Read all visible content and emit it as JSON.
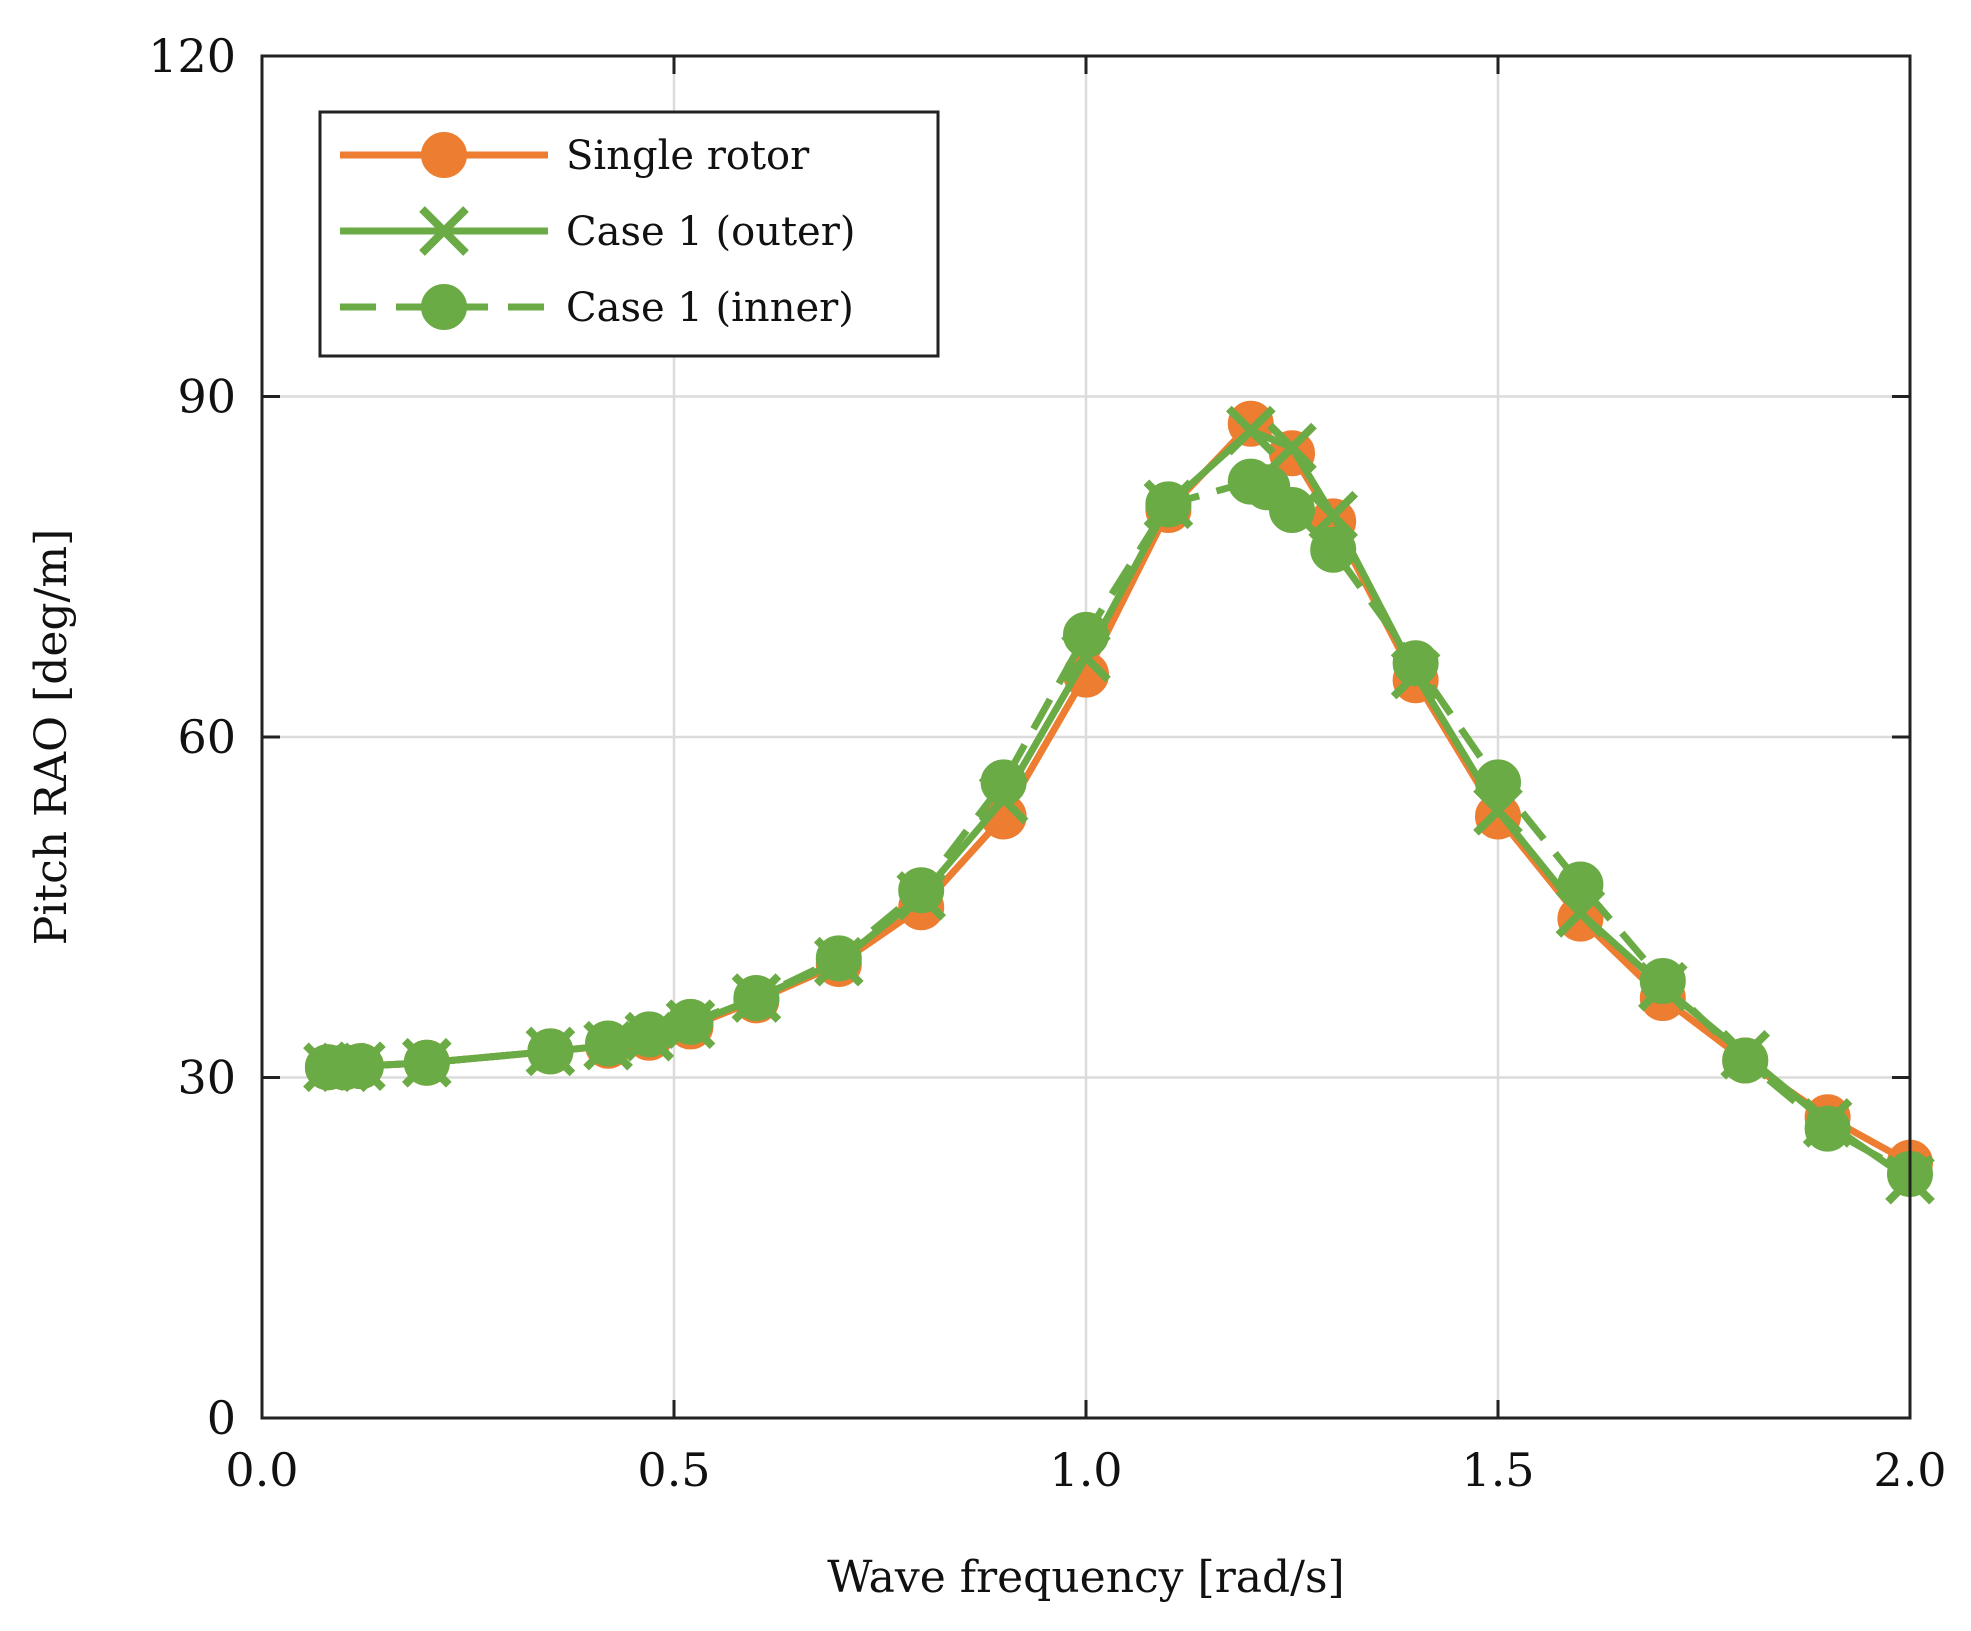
{
  "chart_data": {
    "type": "line",
    "title": "",
    "xlabel": "Wave frequency [rad/s]",
    "ylabel": "Pitch RAO [deg/m]",
    "xlim": [
      0.0,
      2.0
    ],
    "ylim": [
      0,
      120
    ],
    "xticks": [
      0.0,
      0.5,
      1.0,
      1.5,
      2.0
    ],
    "xtick_labels": [
      "0.0",
      "0.5",
      "1.0",
      "1.5",
      "2.0"
    ],
    "yticks": [
      0,
      30,
      60,
      90,
      120
    ],
    "ytick_labels": [
      "0",
      "30",
      "60",
      "90",
      "120"
    ],
    "grid": true,
    "legend_position": "top-left",
    "series": [
      {
        "name": "Single rotor",
        "color": "#ED7D31",
        "marker": "circle",
        "line_style": "solid",
        "x": [
          0.08,
          0.1,
          0.12,
          0.2,
          0.35,
          0.42,
          0.47,
          0.52,
          0.6,
          0.7,
          0.8,
          0.9,
          1.0,
          1.1,
          1.2,
          1.25,
          1.3,
          1.4,
          1.5,
          1.6,
          1.7,
          1.8,
          1.9,
          2.0
        ],
        "y": [
          30.9,
          30.9,
          31.0,
          31.3,
          32.3,
          32.8,
          33.5,
          34.5,
          36.8,
          40.0,
          45.0,
          53.0,
          65.5,
          80.0,
          87.6,
          85.0,
          79.0,
          65.0,
          53.0,
          44.0,
          37.0,
          31.5,
          26.5,
          22.5
        ]
      },
      {
        "name": "Case 1 (outer)",
        "color": "#6AAB46",
        "marker": "x",
        "line_style": "solid",
        "x": [
          0.08,
          0.1,
          0.12,
          0.2,
          0.35,
          0.42,
          0.47,
          0.52,
          0.6,
          0.7,
          0.8,
          0.9,
          1.0,
          1.1,
          1.2,
          1.25,
          1.3,
          1.4,
          1.5,
          1.6,
          1.7,
          1.8,
          1.9,
          2.0
        ],
        "y": [
          30.9,
          30.9,
          31.0,
          31.3,
          32.3,
          32.8,
          33.6,
          34.7,
          37.0,
          40.2,
          46.0,
          54.5,
          67.0,
          80.5,
          87.0,
          85.5,
          79.5,
          65.5,
          53.5,
          44.5,
          38.0,
          32.0,
          26.0,
          21.0
        ]
      },
      {
        "name": "Case 1 (inner)",
        "color": "#6AAB46",
        "marker": "circle",
        "line_style": "dashed",
        "x": [
          0.08,
          0.1,
          0.12,
          0.2,
          0.35,
          0.42,
          0.47,
          0.52,
          0.6,
          0.7,
          0.8,
          0.9,
          1.0,
          1.1,
          1.2,
          1.22,
          1.25,
          1.3,
          1.4,
          1.5,
          1.6,
          1.7,
          1.8,
          1.9,
          2.0
        ],
        "y": [
          30.9,
          30.9,
          31.0,
          31.3,
          32.3,
          33.0,
          33.8,
          34.9,
          37.0,
          40.5,
          46.5,
          56.0,
          69.0,
          80.5,
          82.5,
          82.0,
          80.0,
          76.5,
          66.5,
          56.0,
          47.0,
          38.5,
          31.5,
          25.5,
          21.5
        ]
      }
    ]
  }
}
